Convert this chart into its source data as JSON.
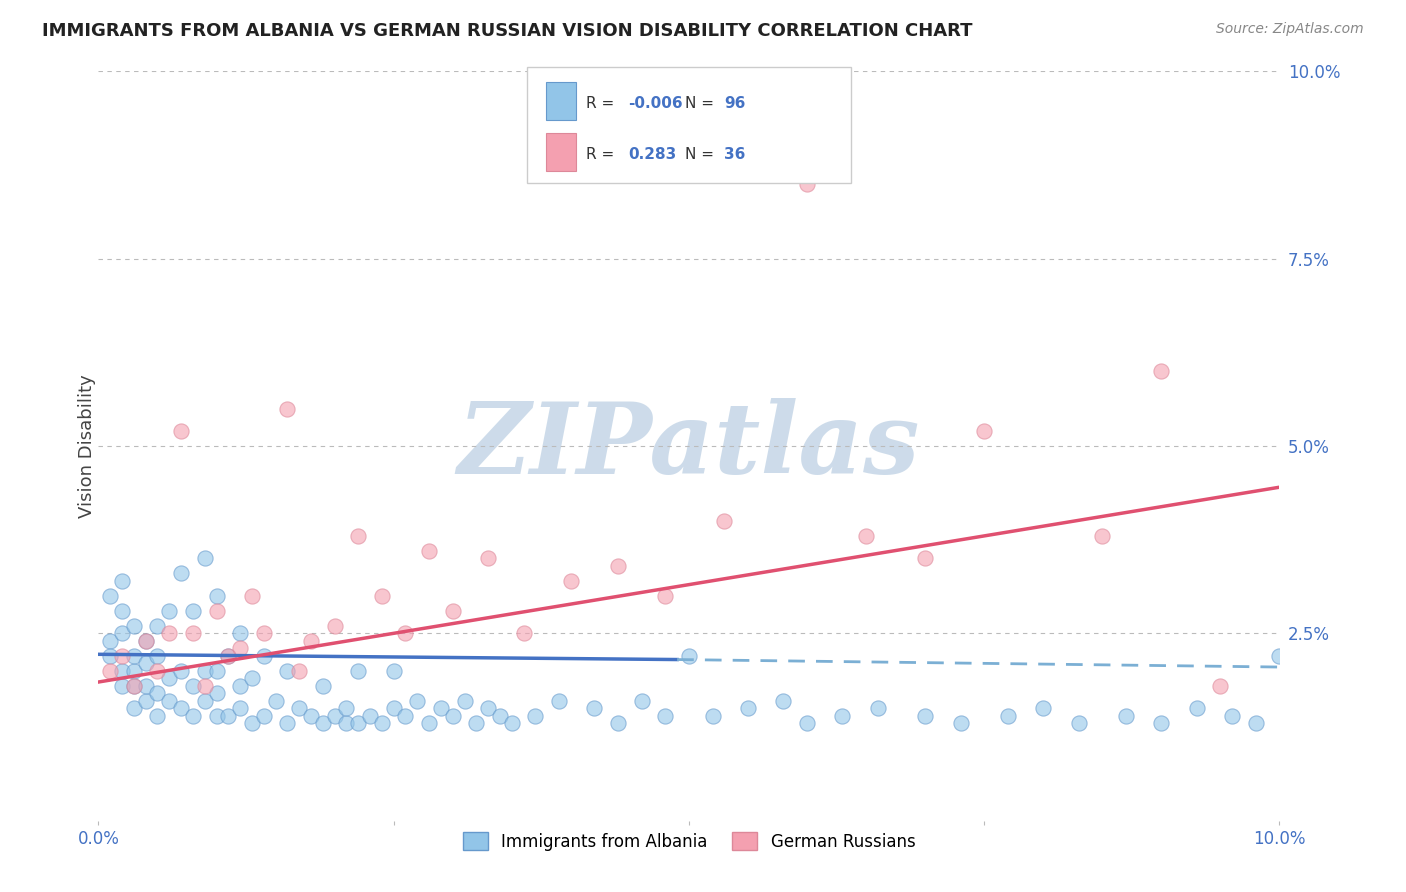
{
  "title": "IMMIGRANTS FROM ALBANIA VS GERMAN RUSSIAN VISION DISABILITY CORRELATION CHART",
  "source": "Source: ZipAtlas.com",
  "ylabel": "Vision Disability",
  "x_label_legend1": "Immigrants from Albania",
  "x_label_legend2": "German Russians",
  "r1": -0.006,
  "n1": 96,
  "r2": 0.283,
  "n2": 36,
  "xlim": [
    0.0,
    0.1
  ],
  "ylim": [
    0.0,
    0.1
  ],
  "color_blue": "#92C5E8",
  "color_blue_edge": "#6699CC",
  "color_pink": "#F4A0B0",
  "color_pink_edge": "#DD8899",
  "color_blue_line_solid": "#4472C4",
  "color_blue_line_dash": "#7BAFD4",
  "color_pink_line": "#E05070",
  "color_title": "#222222",
  "color_axis_label": "#444444",
  "color_tick_label": "#4472C4",
  "color_source": "#888888",
  "color_watermark": "#C8D8E8",
  "watermark_text": "ZIPatlas",
  "background_color": "#FFFFFF",
  "grid_color": "#BBBBBB",
  "blue_scatter_x": [
    0.001,
    0.001,
    0.001,
    0.002,
    0.002,
    0.002,
    0.002,
    0.002,
    0.003,
    0.003,
    0.003,
    0.003,
    0.003,
    0.004,
    0.004,
    0.004,
    0.004,
    0.005,
    0.005,
    0.005,
    0.005,
    0.006,
    0.006,
    0.006,
    0.007,
    0.007,
    0.007,
    0.008,
    0.008,
    0.008,
    0.009,
    0.009,
    0.009,
    0.01,
    0.01,
    0.01,
    0.01,
    0.011,
    0.011,
    0.012,
    0.012,
    0.012,
    0.013,
    0.013,
    0.014,
    0.014,
    0.015,
    0.016,
    0.016,
    0.017,
    0.018,
    0.019,
    0.019,
    0.02,
    0.021,
    0.021,
    0.022,
    0.022,
    0.023,
    0.024,
    0.025,
    0.025,
    0.026,
    0.027,
    0.028,
    0.029,
    0.03,
    0.031,
    0.032,
    0.033,
    0.034,
    0.035,
    0.037,
    0.039,
    0.042,
    0.044,
    0.046,
    0.048,
    0.05,
    0.052,
    0.055,
    0.058,
    0.06,
    0.063,
    0.066,
    0.07,
    0.073,
    0.077,
    0.08,
    0.083,
    0.087,
    0.09,
    0.093,
    0.096,
    0.098,
    0.1
  ],
  "blue_scatter_y": [
    0.024,
    0.022,
    0.03,
    0.018,
    0.02,
    0.025,
    0.028,
    0.032,
    0.015,
    0.018,
    0.02,
    0.022,
    0.026,
    0.016,
    0.018,
    0.021,
    0.024,
    0.014,
    0.017,
    0.022,
    0.026,
    0.016,
    0.019,
    0.028,
    0.015,
    0.02,
    0.033,
    0.014,
    0.018,
    0.028,
    0.016,
    0.02,
    0.035,
    0.014,
    0.017,
    0.02,
    0.03,
    0.014,
    0.022,
    0.015,
    0.018,
    0.025,
    0.013,
    0.019,
    0.014,
    0.022,
    0.016,
    0.013,
    0.02,
    0.015,
    0.014,
    0.013,
    0.018,
    0.014,
    0.013,
    0.015,
    0.013,
    0.02,
    0.014,
    0.013,
    0.015,
    0.02,
    0.014,
    0.016,
    0.013,
    0.015,
    0.014,
    0.016,
    0.013,
    0.015,
    0.014,
    0.013,
    0.014,
    0.016,
    0.015,
    0.013,
    0.016,
    0.014,
    0.022,
    0.014,
    0.015,
    0.016,
    0.013,
    0.014,
    0.015,
    0.014,
    0.013,
    0.014,
    0.015,
    0.013,
    0.014,
    0.013,
    0.015,
    0.014,
    0.013,
    0.022
  ],
  "pink_scatter_x": [
    0.001,
    0.002,
    0.003,
    0.004,
    0.005,
    0.006,
    0.007,
    0.008,
    0.009,
    0.01,
    0.011,
    0.012,
    0.013,
    0.014,
    0.016,
    0.017,
    0.018,
    0.02,
    0.022,
    0.024,
    0.026,
    0.028,
    0.03,
    0.033,
    0.036,
    0.04,
    0.044,
    0.048,
    0.053,
    0.06,
    0.065,
    0.07,
    0.075,
    0.085,
    0.09,
    0.095
  ],
  "pink_scatter_y": [
    0.02,
    0.022,
    0.018,
    0.024,
    0.02,
    0.025,
    0.052,
    0.025,
    0.018,
    0.028,
    0.022,
    0.023,
    0.03,
    0.025,
    0.055,
    0.02,
    0.024,
    0.026,
    0.038,
    0.03,
    0.025,
    0.036,
    0.028,
    0.035,
    0.025,
    0.032,
    0.034,
    0.03,
    0.04,
    0.085,
    0.038,
    0.035,
    0.052,
    0.038,
    0.06,
    0.018
  ],
  "blue_solid_trend_x": [
    0.0,
    0.049
  ],
  "blue_solid_trend_y": [
    0.0222,
    0.0215
  ],
  "blue_dash_trend_x": [
    0.049,
    0.1
  ],
  "blue_dash_trend_y": [
    0.0215,
    0.0205
  ],
  "pink_trend_x": [
    0.0,
    0.1
  ],
  "pink_trend_y": [
    0.0185,
    0.0445
  ]
}
